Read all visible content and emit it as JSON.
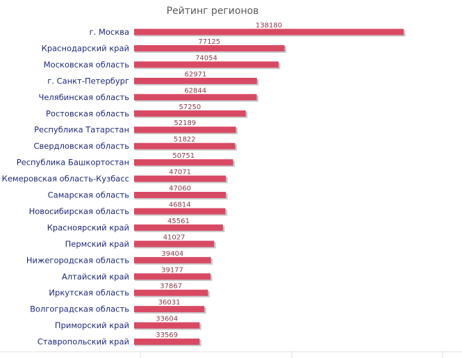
{
  "chart_data": {
    "type": "bar",
    "orientation": "horizontal",
    "title": "Рейтинг регионов",
    "categories": [
      "г. Москва",
      "Краснодарский край",
      "Московская область",
      "г. Санкт-Петербург",
      "Челябинская область",
      "Ростовская область",
      "Республика Татарстан",
      "Свердловская область",
      "Республика Башкортостан",
      "Кемеровская область-Кузбасс",
      "Самарская область",
      "Новосибирская область",
      "Красноярский край",
      "Пермский край",
      "Нижегородская область",
      "Алтайский край",
      "Иркутская область",
      "Волгоградская область",
      "Приморский край",
      "Ставропольский край"
    ],
    "values": [
      138180,
      77125,
      74054,
      62971,
      62844,
      57250,
      52189,
      51822,
      50751,
      47071,
      47060,
      46814,
      45561,
      41027,
      39404,
      39177,
      37867,
      36031,
      33604,
      33569
    ],
    "xlim": [
      0,
      138180
    ],
    "grid": false,
    "legend": "none",
    "colors": {
      "bar": "#d84a63",
      "label": "#1f2a7a",
      "value": "#8a3a4a"
    }
  }
}
